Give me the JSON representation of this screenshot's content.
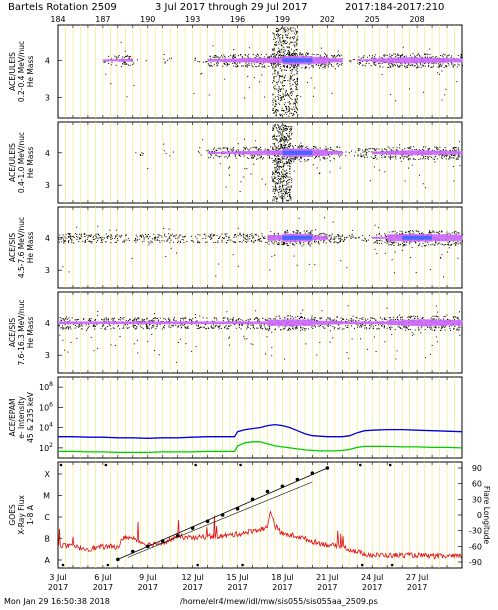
{
  "header": {
    "title": "Bartels Rotation 2509",
    "range": "3 Jul 2017 through 29 Jul 2017",
    "doy": "2017:184-2017:210"
  },
  "footer": {
    "timestamp": "Mon Jan 29 16:50:38 2018",
    "path": "/home/elr4/mew/idl/mw/sis055/sis055aa_2509.ps"
  },
  "top_ticks": [
    "184",
    "187",
    "190",
    "193",
    "196",
    "199",
    "202",
    "205",
    "208"
  ],
  "bottom_ticks": [
    {
      "day": "3 Jul",
      "year": "2017"
    },
    {
      "day": "6 Jul",
      "year": "2017"
    },
    {
      "day": "9 Jul",
      "year": "2017"
    },
    {
      "day": "12 Jul",
      "year": "2017"
    },
    {
      "day": "15 Jul",
      "year": "2017"
    },
    {
      "day": "18 Jul",
      "year": "2017"
    },
    {
      "day": "21 Jul",
      "year": "2017"
    },
    {
      "day": "24 Jul",
      "year": "2017"
    },
    {
      "day": "27 Jul",
      "year": "2017"
    }
  ],
  "colors": {
    "grid": "#f3e76a",
    "points": "#000000",
    "dense": "#cc66ff",
    "core": "#4466ff",
    "protons_high": "#0000dd",
    "protons_low": "#00cc00",
    "xray": "#e01010"
  },
  "chart_data": [
    {
      "type": "scatter",
      "ylabel_lines": [
        "ACE/ULEIS",
        "0.2-0.4 MeV/nuc",
        "He Mass"
      ],
      "yticks": [
        "4",
        "3"
      ],
      "density_profile": [
        0,
        0,
        0,
        0.55,
        0.6,
        0.05,
        0,
        0.1,
        0,
        0.1,
        0.6,
        0.65,
        0.7,
        0.75,
        0.8,
        1.0,
        1.0,
        0.9,
        0.7,
        0.1,
        0.55,
        0.7,
        0.8,
        0.85,
        0.8,
        0.75,
        0.7
      ],
      "bursts": [
        {
          "day": 14.3,
          "day_end": 16.0
        }
      ]
    },
    {
      "type": "scatter",
      "ylabel_lines": [
        "ACE/ULEIS",
        "0.4-1.0 MeV/nuc",
        "He Mass"
      ],
      "yticks": [
        "4",
        "3"
      ],
      "density_profile": [
        0,
        0,
        0,
        0,
        0,
        0.05,
        0,
        0.1,
        0,
        0.1,
        0.55,
        0.6,
        0.65,
        0.7,
        0.75,
        1.0,
        1.0,
        0.85,
        0.65,
        0.1,
        0.5,
        0.6,
        0.7,
        0.75,
        0.75,
        0.7,
        0.65
      ],
      "bursts": [
        {
          "day": 14.3,
          "day_end": 15.6
        }
      ]
    },
    {
      "type": "scatter",
      "ylabel_lines": [
        "ACE/SIS",
        "4.5-7.6 MeV/nuc",
        "He Mass"
      ],
      "yticks": [
        "4",
        "3"
      ],
      "density_profile": [
        0.45,
        0.45,
        0.45,
        0.4,
        0.4,
        0.4,
        0.4,
        0.4,
        0.4,
        0.4,
        0.4,
        0.4,
        0.4,
        0.4,
        0.8,
        1.0,
        0.95,
        0.7,
        0.45,
        0.3,
        0.3,
        0.55,
        0.9,
        0.95,
        0.95,
        0.9,
        0.85
      ],
      "bursts": []
    },
    {
      "type": "scatter",
      "ylabel_lines": [
        "ACE/SIS",
        "7.6-16.3 MeV/nuc",
        "He Mass"
      ],
      "yticks": [
        "4",
        "3"
      ],
      "density_profile": [
        0.6,
        0.6,
        0.6,
        0.6,
        0.6,
        0.6,
        0.6,
        0.6,
        0.6,
        0.6,
        0.6,
        0.6,
        0.6,
        0.6,
        0.85,
        0.9,
        0.85,
        0.7,
        0.65,
        0.6,
        0.6,
        0.6,
        0.75,
        0.85,
        0.9,
        0.85,
        0.8
      ],
      "bursts": []
    },
    {
      "type": "line",
      "ylabel_lines": [
        "ACE/EPAM",
        "e- Intensity",
        "45 & 235 keV"
      ],
      "yscale": "log",
      "yticks": [
        {
          "base": "10",
          "exp": "8",
          "value": 8
        },
        {
          "base": "10",
          "exp": "6",
          "value": 6
        },
        {
          "base": "10",
          "exp": "4",
          "value": 4
        },
        {
          "base": "10",
          "exp": "2",
          "value": 2
        }
      ],
      "ylim": [
        1,
        9
      ],
      "x_range": [
        0,
        27
      ],
      "series": [
        {
          "x": [
            0,
            1,
            2,
            3,
            4,
            5,
            6,
            7,
            8,
            9,
            10,
            11,
            11.8,
            12,
            12.5,
            13,
            13.5,
            14,
            14.5,
            15,
            15.5,
            16,
            16.5,
            17,
            17.5,
            18,
            18.5,
            19,
            19.5,
            20,
            20.5,
            21,
            22,
            23,
            24,
            25,
            26,
            27
          ],
          "y": [
            3.1,
            3.1,
            3.05,
            3.05,
            3.0,
            3.0,
            2.95,
            3.0,
            3.0,
            3.05,
            3.1,
            3.1,
            3.1,
            3.6,
            3.8,
            3.9,
            4.0,
            4.2,
            4.3,
            4.2,
            4.0,
            3.7,
            3.4,
            3.2,
            3.15,
            3.1,
            3.1,
            3.1,
            3.2,
            3.5,
            3.7,
            3.75,
            3.8,
            3.8,
            3.75,
            3.7,
            3.65,
            3.6
          ]
        },
        {
          "x": [
            0,
            1,
            2,
            3,
            4,
            5,
            6,
            7,
            8,
            9,
            10,
            11,
            11.8,
            12,
            12.5,
            13,
            13.5,
            14,
            14.5,
            15,
            15.5,
            16,
            16.5,
            17,
            17.5,
            18,
            18.5,
            19,
            19.5,
            20,
            20.5,
            21,
            22,
            23,
            24,
            25,
            26,
            27
          ],
          "y": [
            1.65,
            1.65,
            1.6,
            1.6,
            1.55,
            1.55,
            1.55,
            1.6,
            1.6,
            1.6,
            1.65,
            1.65,
            1.65,
            2.2,
            2.5,
            2.6,
            2.6,
            2.4,
            2.2,
            2.1,
            2.0,
            1.9,
            1.8,
            1.75,
            1.7,
            1.7,
            1.7,
            1.75,
            1.85,
            2.05,
            2.15,
            2.15,
            2.15,
            2.1,
            2.1,
            2.05,
            2.05,
            2.0
          ]
        }
      ]
    },
    {
      "type": "line",
      "ylabel_lines": [
        "GOES",
        "X-Ray Flux",
        "1-8 A"
      ],
      "y_left_ticks": [
        "X",
        "M",
        "C",
        "B",
        "A"
      ],
      "y_right_label": "Flare Longitude",
      "y_right_ticks": [
        "90",
        "60",
        "30",
        "0",
        "-30",
        "-60",
        "-90"
      ],
      "y_right_lim": [
        -90,
        90
      ],
      "xray_levels": [
        {
          "x": 0,
          "y": 0.22
        },
        {
          "x": 2,
          "y": 0.18
        },
        {
          "x": 3,
          "y": 0.2
        },
        {
          "x": 4,
          "y": 0.2
        },
        {
          "x": 4.5,
          "y": 0.3
        },
        {
          "x": 6,
          "y": 0.22
        },
        {
          "x": 7,
          "y": 0.24
        },
        {
          "x": 8,
          "y": 0.3
        },
        {
          "x": 9,
          "y": 0.28
        },
        {
          "x": 10,
          "y": 0.3
        },
        {
          "x": 11,
          "y": 0.3
        },
        {
          "x": 12,
          "y": 0.32
        },
        {
          "x": 13,
          "y": 0.35
        },
        {
          "x": 14,
          "y": 0.38
        },
        {
          "x": 14.2,
          "y": 0.55
        },
        {
          "x": 14.5,
          "y": 0.4
        },
        {
          "x": 15,
          "y": 0.32
        },
        {
          "x": 16,
          "y": 0.3
        },
        {
          "x": 17,
          "y": 0.25
        },
        {
          "x": 18,
          "y": 0.22
        },
        {
          "x": 19,
          "y": 0.2
        },
        {
          "x": 20,
          "y": 0.15
        },
        {
          "x": 21,
          "y": 0.12
        },
        {
          "x": 22,
          "y": 0.12
        },
        {
          "x": 23,
          "y": 0.12
        },
        {
          "x": 24,
          "y": 0.12
        },
        {
          "x": 25,
          "y": 0.11
        },
        {
          "x": 26,
          "y": 0.11
        },
        {
          "x": 27,
          "y": 0.11
        }
      ],
      "flare_longitude": {
        "x": [
          4,
          5,
          6,
          7,
          8,
          9,
          10,
          11,
          12,
          13,
          14,
          15,
          16,
          17,
          18
        ],
        "y": [
          -85,
          -70,
          -60,
          -50,
          -40,
          -25,
          -12,
          0,
          12,
          30,
          45,
          55,
          68,
          80,
          90
        ]
      }
    }
  ]
}
